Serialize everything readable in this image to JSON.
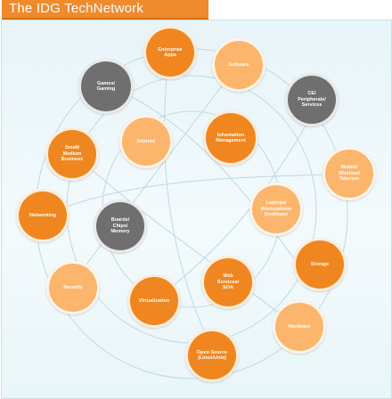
{
  "header": {
    "title": "The IDG TechNetwork"
  },
  "colors": {
    "header": "#f08a2c",
    "orange": "#f0861f",
    "light_orange": "#fbb56c",
    "gray": "#6f6f6f",
    "panel": "#e7f4f8"
  },
  "nodes": {
    "enterprise_apps": "Enterprise\nApps",
    "software": "Software",
    "games_gaming": "Games/\nGaming",
    "ce_peripherals_services": "CE/\nPeripherals/\nServices",
    "information_management": "Information\nManagement",
    "internet": "Internet",
    "small_medium_business": "Small/\nMedium\nBusiness",
    "mobile_wireless_telecom": "Mobile/\nWireless/\nTelecom",
    "laptops_workstations_desktops": "Laptops/\nWorkstations\nDesktops/",
    "networking": "Networking",
    "boards_chips_memory": "Boards/\nChips/\nMemory",
    "storage": "Storage",
    "web_services_soa": "Web\nServices/\nSOA",
    "security": "Security",
    "virtualization": "Virtualization",
    "hardware": "Hardware",
    "open_source": "Open Source\n(Linux/Unix)"
  }
}
